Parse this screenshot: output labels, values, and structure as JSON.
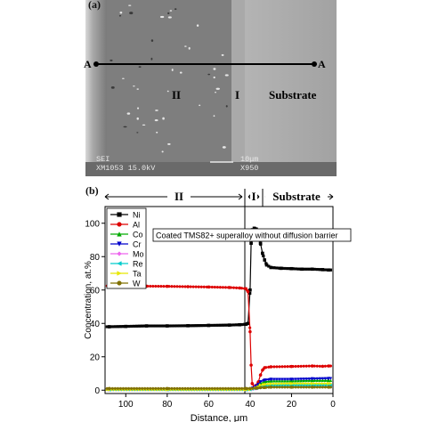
{
  "panel_a": {
    "label": "(a)",
    "line_start_label": "A",
    "line_end_label": "A",
    "zone_ii_label": "II",
    "zone_i_label": "I",
    "substrate_label": "Substrate",
    "info_left_1": "SEI",
    "info_left_2": "XM1053 15.0kV",
    "scale_text": "10μm",
    "magnification": "X950"
  },
  "panel_b": {
    "label": "(b)",
    "zone_ii_label": "II",
    "zone_i_label": "I",
    "substrate_label": "Substrate"
  },
  "chart_data": {
    "type": "line",
    "title": "Coated TMS82+ superalloy without diffusion barrier",
    "xlabel": "Distance, μm",
    "ylabel": "Concentration, at.%",
    "xlim": [
      110,
      0
    ],
    "ylim": [
      -2,
      110
    ],
    "x_ticks": [
      100,
      80,
      60,
      40,
      20,
      0
    ],
    "y_ticks": [
      0,
      20,
      40,
      60,
      80,
      100
    ],
    "legend_position": "top-left",
    "series": [
      {
        "name": "Ni",
        "color": "#000000",
        "marker": "square",
        "points": [
          [
            108,
            38
          ],
          [
            100,
            38.2
          ],
          [
            90,
            38.5
          ],
          [
            80,
            38.5
          ],
          [
            70,
            38.6
          ],
          [
            60,
            38.8
          ],
          [
            50,
            39
          ],
          [
            45,
            39.2
          ],
          [
            42,
            39.5
          ],
          [
            41,
            40
          ],
          [
            40,
            60
          ],
          [
            39.5,
            88
          ],
          [
            39,
            96
          ],
          [
            38,
            97
          ],
          [
            37,
            96.5
          ],
          [
            36,
            94
          ],
          [
            35,
            88
          ],
          [
            34,
            82
          ],
          [
            33,
            78
          ],
          [
            32,
            75
          ],
          [
            30,
            73.5
          ],
          [
            25,
            73
          ],
          [
            20,
            72.8
          ],
          [
            15,
            72.5
          ],
          [
            10,
            72.5
          ],
          [
            5,
            72.2
          ],
          [
            2,
            72
          ]
        ]
      },
      {
        "name": "Al",
        "color": "#dd0000",
        "marker": "circle",
        "points": [
          [
            108,
            62.5
          ],
          [
            100,
            62.4
          ],
          [
            90,
            62.3
          ],
          [
            80,
            62.2
          ],
          [
            70,
            62
          ],
          [
            60,
            61.8
          ],
          [
            50,
            61.5
          ],
          [
            45,
            61.2
          ],
          [
            42,
            60.8
          ],
          [
            41,
            59
          ],
          [
            40,
            35
          ],
          [
            39.5,
            15
          ],
          [
            39,
            4
          ],
          [
            38,
            2
          ],
          [
            37,
            3
          ],
          [
            36,
            5
          ],
          [
            35,
            9
          ],
          [
            34,
            12
          ],
          [
            33,
            13.5
          ],
          [
            30,
            14
          ],
          [
            20,
            14.2
          ],
          [
            10,
            14.5
          ],
          [
            5,
            14.3
          ],
          [
            2,
            14.5
          ]
        ]
      },
      {
        "name": "Co",
        "color": "#00aa00",
        "marker": "triangle-up",
        "points": [
          [
            108,
            0.5
          ],
          [
            80,
            0.5
          ],
          [
            42,
            0.5
          ],
          [
            40,
            0.6
          ],
          [
            37,
            2
          ],
          [
            35,
            4
          ],
          [
            33,
            5
          ],
          [
            30,
            5.5
          ],
          [
            20,
            5.5
          ],
          [
            10,
            5.8
          ],
          [
            2,
            5.8
          ]
        ]
      },
      {
        "name": "Cr",
        "color": "#0000cc",
        "marker": "triangle-down",
        "points": [
          [
            108,
            0.4
          ],
          [
            80,
            0.4
          ],
          [
            42,
            0.4
          ],
          [
            40,
            0.6
          ],
          [
            37,
            2.5
          ],
          [
            35,
            5
          ],
          [
            33,
            6
          ],
          [
            30,
            6.5
          ],
          [
            20,
            6.5
          ],
          [
            10,
            6.8
          ],
          [
            2,
            7
          ]
        ]
      },
      {
        "name": "Mo",
        "color": "#ee66ee",
        "marker": "diamond",
        "points": [
          [
            108,
            0.2
          ],
          [
            80,
            0.2
          ],
          [
            42,
            0.2
          ],
          [
            40,
            0.3
          ],
          [
            37,
            0.8
          ],
          [
            35,
            1.5
          ],
          [
            33,
            1.8
          ],
          [
            30,
            2
          ],
          [
            20,
            2
          ],
          [
            10,
            2
          ],
          [
            2,
            2
          ]
        ]
      },
      {
        "name": "Re",
        "color": "#00cccc",
        "marker": "triangle-left",
        "points": [
          [
            108,
            0.2
          ],
          [
            80,
            0.2
          ],
          [
            42,
            0.2
          ],
          [
            40,
            0.3
          ],
          [
            37,
            1
          ],
          [
            35,
            2
          ],
          [
            33,
            2.5
          ],
          [
            30,
            2.8
          ],
          [
            20,
            3
          ],
          [
            10,
            3
          ],
          [
            2,
            3
          ]
        ]
      },
      {
        "name": "Ta",
        "color": "#e8e800",
        "marker": "triangle-right",
        "points": [
          [
            108,
            0.3
          ],
          [
            80,
            0.3
          ],
          [
            42,
            0.3
          ],
          [
            40,
            0.4
          ],
          [
            37,
            1.5
          ],
          [
            35,
            3
          ],
          [
            33,
            3.5
          ],
          [
            30,
            3.8
          ],
          [
            20,
            4
          ],
          [
            10,
            4
          ],
          [
            2,
            4
          ]
        ]
      },
      {
        "name": "W",
        "color": "#807000",
        "marker": "circle",
        "points": [
          [
            108,
            1
          ],
          [
            80,
            1
          ],
          [
            42,
            1
          ],
          [
            40,
            1
          ],
          [
            37,
            1.2
          ],
          [
            35,
            1.5
          ],
          [
            33,
            1.6
          ],
          [
            30,
            1.8
          ],
          [
            20,
            1.8
          ],
          [
            10,
            1.8
          ],
          [
            2,
            1.8
          ]
        ]
      }
    ]
  }
}
